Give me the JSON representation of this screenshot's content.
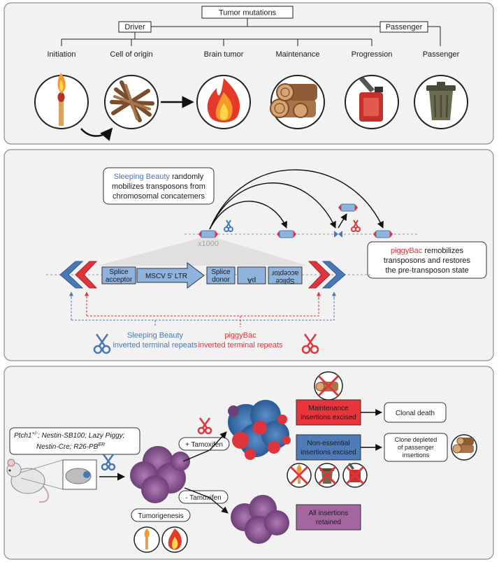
{
  "panel_a": {
    "root": "Tumor mutations",
    "driver": "Driver",
    "passenger": "Passenger",
    "stages": [
      "Initiation",
      "Cell of origin",
      "Brain tumor",
      "Maintenance",
      "Progression",
      "Passenger"
    ],
    "icons": [
      "match-icon",
      "firewood-icon",
      "fire-icon",
      "logs-icon",
      "fuel-can-icon",
      "trash-can-icon"
    ]
  },
  "panel_b": {
    "sb_callout": {
      "highlight": "Sleeping Beauty",
      "rest1": " randomly",
      "line2": "mobilizes transposons from",
      "line3": "chromosomal concatemers"
    },
    "pb_callout": {
      "highlight": "piggyBac",
      "rest1": " remobilizes",
      "line2": "transposons and restores",
      "line3": "the pre-transposon state"
    },
    "copies": "x1000",
    "cassette": {
      "splice_acceptor": [
        "Splice",
        "acceptor"
      ],
      "ltr": "MSCV 5' LTR",
      "splice_donor": [
        "Splice",
        "donor"
      ],
      "pa": "pA",
      "splice_acceptor_rev": [
        "Splice",
        "acceptor"
      ]
    },
    "sb_repeats": [
      "Sleeping Beauty",
      "inverted terminal repeats"
    ],
    "pb_repeats": [
      "piggyBac",
      "inverted terminal repeats"
    ],
    "colors": {
      "sb_blue": "#4a78b4",
      "pb_red": "#e0343c",
      "box_blue": "#8eb3dd"
    }
  },
  "panel_c": {
    "genotype": [
      "Ptch1",
      "+/-",
      "; Nestin-SB100; Lazy Piggy;",
      "Nestin-Cre; R26-PB",
      "ER"
    ],
    "plus_tam": "+ Tamoxifen",
    "minus_tam": "- Tamoxifen",
    "tumorigenesis": "Tumorigenesis",
    "maintenance_box": [
      "Maintenance",
      "insertions excised"
    ],
    "nonessential_box": [
      "Non-essential",
      "insertions excised"
    ],
    "all_box": [
      "All insertions",
      "retained"
    ],
    "clonal_death": "Clonal death",
    "clone_depleted": [
      "Clone depleted",
      "of passenger",
      "insertions"
    ],
    "colors": {
      "red_box": "#e8343a",
      "blue_box": "#4f7cb8",
      "purple_box": "#a4669f"
    }
  }
}
